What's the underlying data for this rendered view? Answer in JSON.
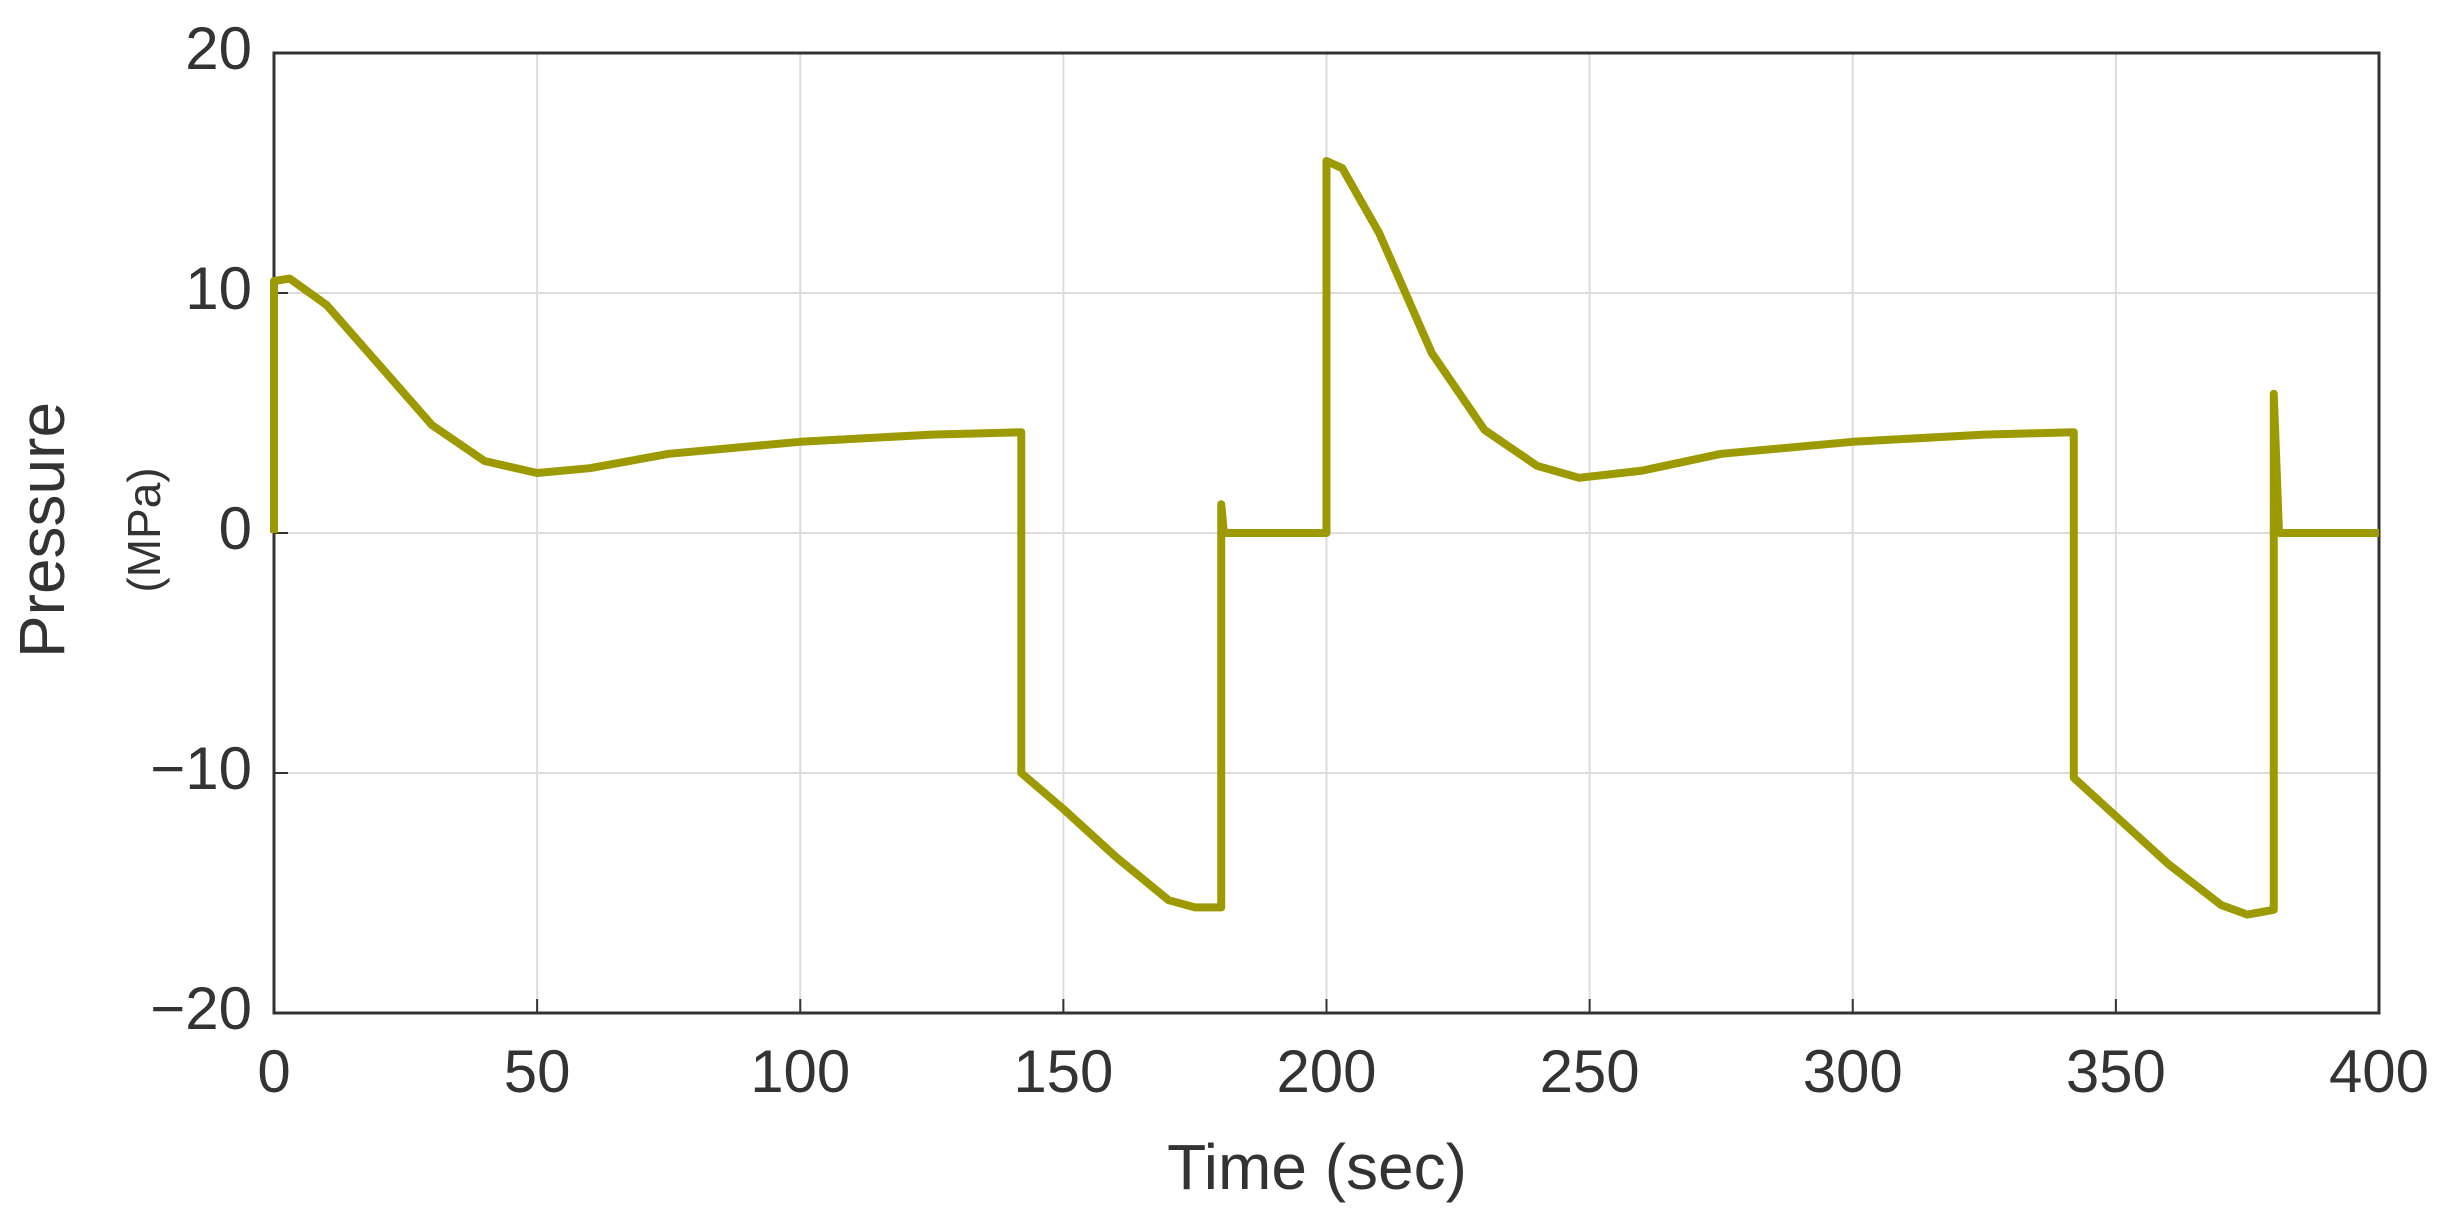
{
  "chart_data": {
    "type": "line",
    "xlabel": "Time (sec)",
    "ylabel": "Pressure",
    "ylabel_unit": "(MPa)",
    "x": [
      0,
      0,
      3,
      10,
      20,
      30,
      40,
      50,
      60,
      75,
      100,
      125,
      142,
      142,
      150,
      160,
      170,
      175,
      180,
      180,
      180.5,
      200,
      200,
      203,
      210,
      220,
      230,
      240,
      248,
      260,
      275,
      300,
      325,
      342,
      342,
      350,
      360,
      370,
      375,
      380,
      380,
      381,
      400
    ],
    "series": [
      {
        "name": "Pressure",
        "color": "#9c9a00",
        "values": [
          0,
          10.5,
          10.6,
          9.5,
          7,
          4.5,
          3,
          2.5,
          2.7,
          3.3,
          3.8,
          4.1,
          4.2,
          -10,
          -11.5,
          -13.5,
          -15.3,
          -15.6,
          -15.6,
          1.2,
          0,
          0,
          15.5,
          15.2,
          12.5,
          7.5,
          4.3,
          2.8,
          2.3,
          2.6,
          3.3,
          3.8,
          4.1,
          4.2,
          -10.2,
          -11.8,
          -13.8,
          -15.5,
          -15.9,
          -15.7,
          5.8,
          0,
          0
        ]
      }
    ],
    "xlim": [
      0,
      400
    ],
    "xticks": [
      0,
      50,
      100,
      150,
      200,
      250,
      300,
      350,
      400
    ],
    "ylim": [
      -20,
      20
    ],
    "yticks": [
      {
        "value": -20,
        "label": "−20"
      },
      {
        "value": -10,
        "label": "−10"
      },
      0,
      10,
      20
    ],
    "grid": true
  }
}
